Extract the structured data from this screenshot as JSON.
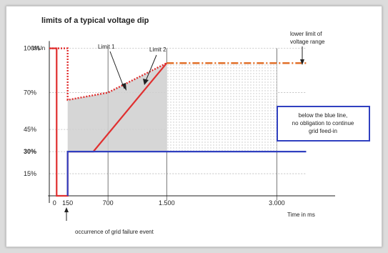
{
  "chart_data": {
    "type": "line",
    "title": "limits of a typical voltage dip",
    "ylabel": "U/Un",
    "xlabel": "Time in ms",
    "ylim": [
      0,
      110
    ],
    "xlim": [
      -100,
      3600
    ],
    "x_ticks": [
      {
        "value": 0,
        "label": "0"
      },
      {
        "value": 150,
        "label": "150"
      },
      {
        "value": 700,
        "label": "700"
      },
      {
        "value": 1500,
        "label": "1.500"
      },
      {
        "value": 3000,
        "label": "3.000"
      }
    ],
    "y_ticks": [
      {
        "value": 100,
        "label": "100%"
      },
      {
        "value": 70,
        "label": "70%"
      },
      {
        "value": 45,
        "label": "45%"
      },
      {
        "value": 30,
        "label": "30%"
      },
      {
        "value": 15,
        "label": "15%"
      }
    ],
    "series": [
      {
        "name": "Limit 1",
        "style": "dotted",
        "color": "#e03030",
        "x": [
          -100,
          150,
          150,
          700,
          1500
        ],
        "y": [
          100,
          100,
          65,
          70,
          90
        ]
      },
      {
        "name": "Limit 2",
        "style": "solid",
        "color": "#e03030",
        "x": [
          -100,
          0,
          0,
          150,
          150,
          500,
          1500
        ],
        "y": [
          100,
          100,
          0,
          0,
          30,
          30,
          90
        ]
      },
      {
        "name": "lower limit of voltage range",
        "style": "dashdot",
        "color": "#e06a20",
        "x": [
          1500,
          3400
        ],
        "y": [
          90,
          90
        ]
      },
      {
        "name": "blue line",
        "style": "solid",
        "color": "#3040c0",
        "x": [
          150,
          150,
          3400
        ],
        "y": [
          0,
          30,
          30
        ]
      }
    ],
    "annotations": {
      "limit1": "Limit 1",
      "limit2": "Limit 2",
      "lower_limit_line1": "lower limit of",
      "lower_limit_line2": "voltage range",
      "box_line1": "below the blue line,",
      "box_line2": "no obligation to continue",
      "box_line3": "grid feed-in",
      "event": "occurrence of grid failure event"
    },
    "colors": {
      "red": "#e03030",
      "orange": "#e06a20",
      "blue": "#3040c0",
      "grid": "#bbbbbb",
      "shade": "#cfcfcf"
    }
  }
}
